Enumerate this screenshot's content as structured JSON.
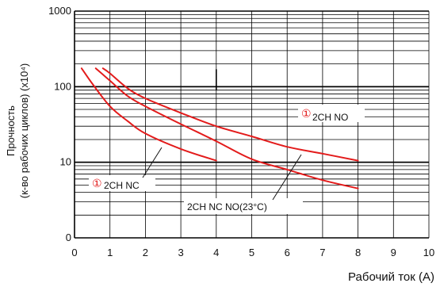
{
  "chart_data": {
    "type": "line",
    "title": "",
    "xlabel": "Рабочий ток (A)",
    "ylabel_line1": "Прочность",
    "ylabel_line2": "(к-во рабочих циклов) (x10⁴)",
    "xlim": [
      0,
      10
    ],
    "ylim": [
      1,
      1000
    ],
    "yscale": "log",
    "grid": true,
    "x_ticks": [
      "0",
      "1",
      "2",
      "3",
      "4",
      "5",
      "6",
      "7",
      "8",
      "9",
      "10"
    ],
    "y_ticks": [
      {
        "value": 1,
        "label": "0"
      },
      {
        "value": 10,
        "label": "10"
      },
      {
        "value": 100,
        "label": "100"
      },
      {
        "value": 1000,
        "label": "1000"
      }
    ],
    "colors": {
      "curve": "#e31b1b",
      "grid": "#000000",
      "marker": "#e31b1b"
    },
    "series": [
      {
        "x": [
          0.2,
          0.5,
          1.0,
          1.5,
          2.0,
          3.0,
          4.0
        ],
        "y": [
          175,
          110,
          55,
          35,
          24,
          15,
          10.5
        ]
      },
      {
        "x": [
          0.6,
          1.0,
          1.5,
          2.0,
          3.0,
          4.0,
          5.0,
          6.0,
          7.0,
          8.0
        ],
        "y": [
          175,
          120,
          75,
          55,
          32,
          19,
          11,
          8,
          5.8,
          4.5
        ]
      },
      {
        "x": [
          0.8,
          1.0,
          1.5,
          2.0,
          3.0,
          4.0,
          5.0,
          6.0,
          7.0,
          8.0
        ],
        "y": [
          175,
          150,
          95,
          70,
          45,
          30,
          22,
          16,
          13,
          10.5
        ]
      }
    ],
    "annotations": [
      {
        "marker": "①",
        "text": "2CH NO"
      },
      {
        "marker": "①",
        "text": "2CH NC"
      },
      {
        "marker": "",
        "text": "2CH NC NO(23°C)"
      }
    ]
  }
}
